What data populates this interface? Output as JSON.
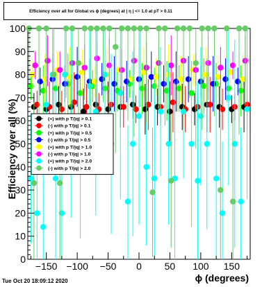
{
  "title": "Efficiency over all for Global vs ϕ (degrees) at | η | <= 1.0 at pT > 0.11",
  "timestamp": "Tue Oct 20 18:09:12 2020",
  "chart_data": {
    "type": "scatter",
    "title": "Efficiency over all for Global vs ϕ (degrees) at | η | <= 1.0 at pT > 0.11",
    "xlabel": "ϕ (degrees)",
    "ylabel": "Efficiency over all (%)",
    "xlim": [
      -180,
      180
    ],
    "ylim": [
      0,
      100
    ],
    "x_ticks": [
      -150,
      -100,
      -50,
      0,
      50,
      100,
      150
    ],
    "x_tick_labels": [
      "−150",
      "−100",
      "−50",
      "0",
      "50",
      "100",
      "150"
    ],
    "y_ticks": [
      0,
      10,
      20,
      30,
      40,
      50,
      60,
      70,
      80,
      90,
      100
    ],
    "grid": false,
    "legend_placement": "center-left",
    "legend": [
      "(+) with p T/|q| > 0.1",
      "(-) with p T/|q| > 0.1",
      "(+) with p T/|q| > 0.5",
      "(-) with p T/|q| > 0.5",
      "(+) with p T/|q| > 1.0",
      "(-) with p T/|q| > 1.0",
      "(+) with p T/|q| > 2.0",
      "(-) with p T/|q| > 2.0"
    ],
    "series": [
      {
        "name": "(+) with p T/|q| > 0.1",
        "color": "#000000",
        "marker": "circle",
        "x": [
          -170,
          -150,
          -130,
          -110,
          -90,
          -70,
          -50,
          -30,
          -10,
          10,
          30,
          50,
          70,
          90,
          110,
          130,
          150,
          170
        ],
        "y": [
          66,
          65,
          67,
          66,
          64,
          67,
          65,
          66,
          67,
          65,
          66,
          64,
          66,
          65,
          67,
          66,
          65,
          66
        ]
      },
      {
        "name": "(-) with p T/|q| > 0.1",
        "color": "#ff0000",
        "marker": "circle",
        "x": [
          -165,
          -145,
          -125,
          -105,
          -85,
          -65,
          -45,
          -25,
          -5,
          15,
          35,
          55,
          75,
          95,
          115,
          135,
          155,
          175
        ],
        "y": [
          67,
          66,
          65,
          68,
          66,
          65,
          67,
          66,
          65,
          67,
          66,
          68,
          65,
          66,
          67,
          65,
          66,
          67
        ]
      },
      {
        "name": "(+) with p T/|q| > 0.5",
        "color": "#00ff00",
        "marker": "circle",
        "x": [
          -175,
          -155,
          -135,
          -115,
          -95,
          -75,
          -55,
          -35,
          -15,
          5,
          25,
          45,
          65,
          85,
          105,
          125,
          145,
          165
        ],
        "y": [
          75,
          73,
          74,
          76,
          72,
          75,
          74,
          73,
          76,
          74,
          75,
          73,
          74,
          72,
          75,
          76,
          74,
          73
        ]
      },
      {
        "name": "(-) with p T/|q| > 0.5",
        "color": "#0000ff",
        "marker": "circle",
        "x": [
          -160,
          -140,
          -120,
          -100,
          -80,
          -60,
          -40,
          -20,
          0,
          20,
          40,
          60,
          80,
          100,
          120,
          140,
          160
        ],
        "y": [
          77,
          78,
          76,
          79,
          77,
          78,
          76,
          77,
          78,
          79,
          76,
          77,
          78,
          77,
          76,
          78,
          77
        ]
      },
      {
        "name": "(+) with p T/|q| > 1.0",
        "color": "#ffff00",
        "marker": "circle",
        "x": [
          -172,
          -152,
          -132,
          -112,
          -92,
          -72,
          -52,
          -32,
          -12,
          8,
          28,
          48,
          68,
          88,
          108,
          128,
          148,
          168
        ],
        "y": [
          80,
          78,
          82,
          79,
          81,
          77,
          80,
          82,
          78,
          81,
          79,
          80,
          78,
          82,
          80,
          79,
          81,
          78
        ]
      },
      {
        "name": "(-) with p T/|q| > 1.0",
        "color": "#ff00ff",
        "marker": "circle",
        "x": [
          -168,
          -148,
          -128,
          -108,
          -88,
          -68,
          -48,
          -28,
          -8,
          12,
          32,
          52,
          72,
          92,
          112,
          132,
          152,
          172
        ],
        "y": [
          84,
          86,
          82,
          85,
          83,
          87,
          84,
          82,
          86,
          83,
          85,
          84,
          86,
          82,
          85,
          83,
          84,
          86
        ]
      },
      {
        "name": "(+) with p T/|q| > 2.0",
        "color": "#00ffff",
        "marker": "circle",
        "x": [
          -175,
          -165,
          -155,
          -150,
          -140,
          -135,
          -125,
          -120,
          -110,
          -95,
          -80,
          -70,
          -55,
          -45,
          -30,
          -18,
          -10,
          0,
          12,
          25,
          35,
          48,
          58,
          72,
          85,
          95,
          100,
          110,
          125,
          135,
          145,
          155,
          165,
          175
        ],
        "y": [
          35,
          20,
          14,
          67,
          80,
          35,
          20,
          80,
          62,
          40,
          75,
          64,
          80,
          50,
          72,
          25,
          50,
          62,
          40,
          35,
          64,
          50,
          35,
          64,
          50,
          34,
          62,
          50,
          35,
          20,
          70,
          50,
          25,
          65
        ]
      },
      {
        "name": "(-) with p T/|q| > 2.0",
        "color": "#66cc66",
        "marker": "circle",
        "x": [
          -178,
          -170,
          -162,
          -150,
          -138,
          -128,
          -118,
          -108,
          -98,
          -88,
          -78,
          -68,
          -58,
          -48,
          -38,
          -28,
          -18,
          -8,
          2,
          12,
          22,
          32,
          42,
          52,
          62,
          72,
          82,
          92,
          102,
          112,
          122,
          132,
          142,
          152,
          162,
          172
        ],
        "y": [
          100,
          33,
          100,
          100,
          80,
          33,
          100,
          100,
          85,
          100,
          100,
          100,
          100,
          100,
          92,
          100,
          100,
          100,
          100,
          100,
          29,
          100,
          100,
          34,
          100,
          100,
          100,
          85,
          100,
          100,
          100,
          30,
          100,
          25,
          100,
          100
        ]
      }
    ]
  }
}
